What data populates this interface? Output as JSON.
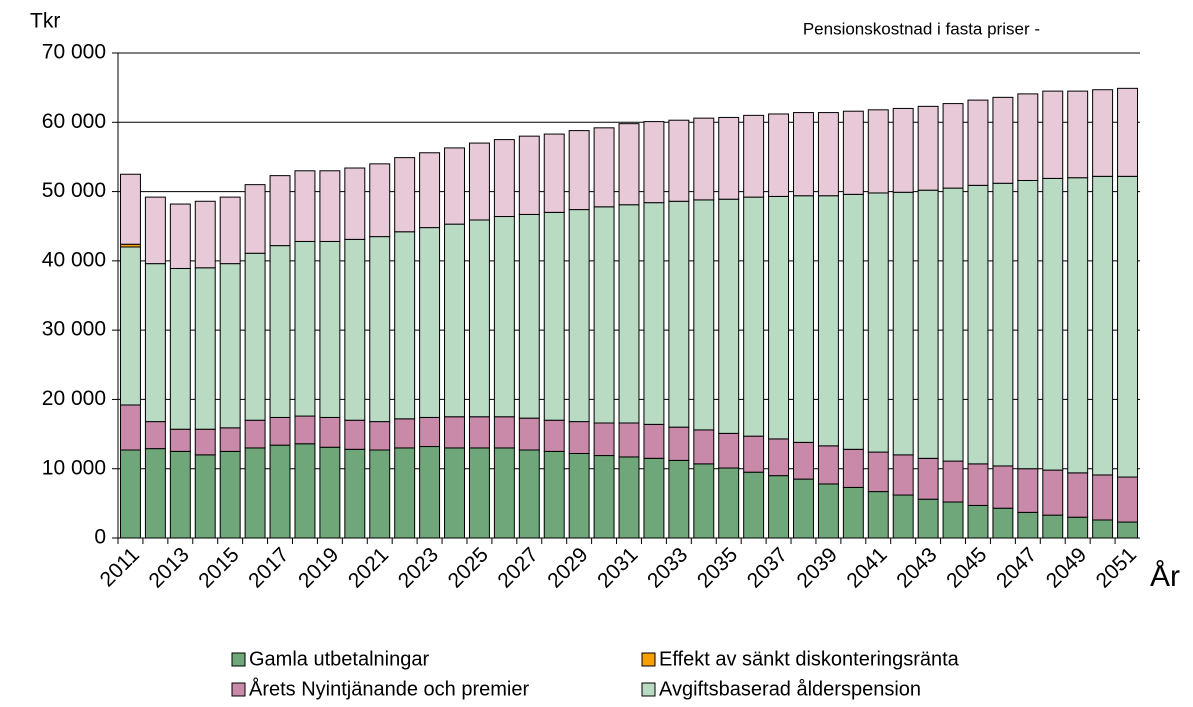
{
  "chart_data": {
    "type": "stacked_bar",
    "title": "Pensionskostnad  i fasta priser -",
    "y_label": "Tkr",
    "x_label": "År",
    "categories": [
      "2011",
      null,
      "2013",
      null,
      "2015",
      null,
      "2017",
      null,
      "2019",
      null,
      "2021",
      null,
      "2023",
      null,
      "2025",
      null,
      "2027",
      null,
      "2029",
      null,
      "2031",
      null,
      "2033",
      null,
      "2035",
      null,
      "2037",
      null,
      "2039",
      null,
      "2041",
      null,
      "2043",
      null,
      "2045",
      null,
      "2047",
      null,
      "2049",
      null,
      "2051"
    ],
    "series": [
      {
        "name": "Gamla utbetalningar",
        "color": "#6fa77a",
        "values": [
          12700,
          12900,
          12500,
          12000,
          12500,
          13000,
          13400,
          13600,
          13100,
          12800,
          12700,
          13000,
          13200,
          13000,
          13000,
          13000,
          12700,
          12500,
          12200,
          11900,
          11700,
          11500,
          11200,
          10700,
          10100,
          9500,
          9000,
          8500,
          7800,
          7300,
          6700,
          6200,
          5600,
          5200,
          4700,
          4300,
          3700,
          3300,
          3000,
          2600,
          2300
        ]
      },
      {
        "name": "Årets Nyintjänande och premier",
        "color": "#c98aa9",
        "values": [
          6500,
          3900,
          3200,
          3700,
          3400,
          4000,
          4000,
          4000,
          4300,
          4200,
          4100,
          4200,
          4200,
          4500,
          4500,
          4500,
          4600,
          4500,
          4600,
          4700,
          4900,
          4900,
          4800,
          4900,
          5000,
          5200,
          5300,
          5300,
          5500,
          5500,
          5700,
          5800,
          5900,
          5900,
          6000,
          6100,
          6300,
          6500,
          6400,
          6500,
          6500
        ]
      },
      {
        "name": "Avgiftsbaserad ålderspension",
        "color": "#b9dac3",
        "values": [
          22800,
          22800,
          23200,
          23300,
          23700,
          24100,
          24800,
          25200,
          25400,
          26100,
          26700,
          27000,
          27400,
          27800,
          28400,
          28900,
          29400,
          30000,
          30600,
          31200,
          31500,
          32000,
          32600,
          33200,
          33800,
          34500,
          35000,
          35600,
          36100,
          36800,
          37400,
          37900,
          38700,
          39400,
          40200,
          40800,
          41600,
          42100,
          42600,
          43100,
          43400
        ]
      },
      {
        "name": "Effekt av sänkt diskonteringsränta",
        "color": "#f5a000",
        "values": [
          400,
          0,
          0,
          0,
          0,
          0,
          0,
          0,
          0,
          0,
          0,
          0,
          0,
          0,
          0,
          0,
          0,
          0,
          0,
          0,
          0,
          0,
          0,
          0,
          0,
          0,
          0,
          0,
          0,
          0,
          0,
          0,
          0,
          0,
          0,
          0,
          0,
          0,
          0,
          0,
          0
        ]
      },
      {
        "color": "#e8c9d8",
        "values": [
          10100,
          9600,
          9300,
          9600,
          9600,
          9900,
          10100,
          10200,
          10200,
          10300,
          10500,
          10700,
          10800,
          11000,
          11100,
          11100,
          11300,
          11300,
          11400,
          11400,
          11700,
          11700,
          11700,
          11800,
          11800,
          11800,
          11900,
          12000,
          12000,
          12000,
          12000,
          12100,
          12100,
          12200,
          12300,
          12400,
          12500,
          12600,
          12500,
          12500,
          12700
        ]
      }
    ],
    "ylim": [
      0,
      70000
    ],
    "yticks": [
      0,
      {
        "value": 10000,
        "label": "10 000"
      },
      {
        "value": 20000,
        "label": "20 000"
      },
      {
        "value": 30000,
        "label": "30 000"
      },
      {
        "value": 40000,
        "label": "40 000"
      },
      {
        "value": 50000,
        "label": "50 000"
      },
      {
        "value": 60000,
        "label": "60 000"
      },
      {
        "value": 70000,
        "label": "70 000"
      }
    ],
    "grid": true
  }
}
